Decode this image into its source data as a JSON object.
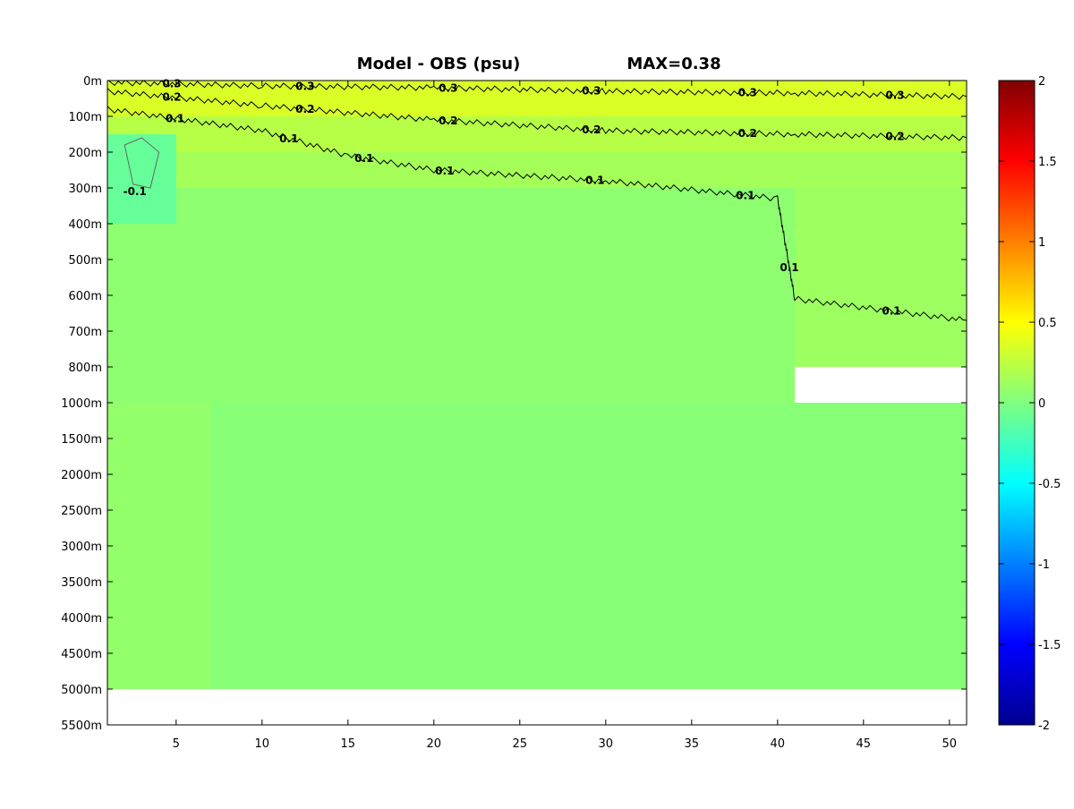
{
  "chart_data": {
    "type": "heatmap",
    "title": "Model - OBS (psu)",
    "annotation": "MAX=0.38",
    "xlabel": "",
    "ylabel": "",
    "x_ticks": [
      5,
      10,
      15,
      20,
      25,
      30,
      35,
      40,
      45,
      50
    ],
    "xlim": [
      1,
      51
    ],
    "depth_ticks": [
      "0m",
      "100m",
      "200m",
      "300m",
      "400m",
      "500m",
      "600m",
      "700m",
      "800m",
      "1000m",
      "1500m",
      "2000m",
      "2500m",
      "3000m",
      "3500m",
      "4000m",
      "4500m",
      "5000m",
      "5500m"
    ],
    "data_bottom_depth": "5000m",
    "colorbar": {
      "colormap": "jet",
      "range": [
        -2,
        2
      ],
      "ticks": [
        "2",
        "1.5",
        "1",
        "0.5",
        "0",
        "-0.5",
        "-1",
        "-1.5",
        "-2"
      ]
    },
    "regions": [
      {
        "description": "surface layer",
        "x": [
          1,
          51
        ],
        "depth": [
          "0m",
          "100m"
        ],
        "value": 0.35
      },
      {
        "description": "near-surface layer",
        "x": [
          1,
          51
        ],
        "depth": [
          "100m",
          "200m"
        ],
        "value": 0.22
      },
      {
        "description": "upper thermocline",
        "x": [
          1,
          51
        ],
        "depth": [
          "200m",
          "300m"
        ],
        "value": 0.15
      },
      {
        "description": "eastern intermediate",
        "x": [
          41,
          51
        ],
        "depth": [
          "300m",
          "800m"
        ],
        "value": 0.12
      },
      {
        "description": "interior intermediate",
        "x": [
          1,
          41
        ],
        "depth": [
          "300m",
          "1000m"
        ],
        "value": 0.06
      },
      {
        "description": "deep ocean",
        "x": [
          1,
          51
        ],
        "depth": [
          "1000m",
          "5000m"
        ],
        "value": 0.03
      },
      {
        "description": "western deep",
        "x": [
          1,
          7
        ],
        "depth": [
          "1000m",
          "5000m"
        ],
        "value": 0.08
      },
      {
        "description": "western minimum",
        "x": [
          1,
          5
        ],
        "depth": [
          "150m",
          "400m"
        ],
        "value": -0.1
      }
    ],
    "contours": [
      {
        "level": 0.3,
        "points": [
          [
            1,
            "5m"
          ],
          [
            10,
            "15m"
          ],
          [
            20,
            "20m"
          ],
          [
            30,
            "30m"
          ],
          [
            41,
            "35m"
          ],
          [
            51,
            "45m"
          ]
        ],
        "labels": [
          "0.3",
          "0.3",
          "0.3",
          "0.3",
          "0.3",
          "0.3"
        ]
      },
      {
        "level": 0.2,
        "points": [
          [
            1,
            "30m"
          ],
          [
            10,
            "70m"
          ],
          [
            20,
            "110m"
          ],
          [
            30,
            "140m"
          ],
          [
            41,
            "150m"
          ],
          [
            51,
            "160m"
          ]
        ],
        "labels": [
          "0.2",
          "0.2",
          "0.2",
          "0.2",
          "0.2",
          "0.2"
        ]
      },
      {
        "level": 0.1,
        "points": [
          [
            1,
            "80m"
          ],
          [
            10,
            "140m"
          ],
          [
            15,
            "210m"
          ],
          [
            20,
            "250m"
          ],
          [
            30,
            "280m"
          ],
          [
            40,
            "330m"
          ],
          [
            41,
            "610m"
          ],
          [
            51,
            "670m"
          ]
        ],
        "labels": [
          "0.1",
          "0.1",
          "0.1",
          "0.1",
          "0.1",
          "0.1",
          "0.1",
          "0.1"
        ]
      },
      {
        "level": -0.1,
        "closed": true,
        "points": [
          [
            2,
            "180m"
          ],
          [
            3,
            "160m"
          ],
          [
            4,
            "200m"
          ],
          [
            3.5,
            "300m"
          ],
          [
            2.5,
            "290m"
          ]
        ],
        "labels": [
          "-0.1"
        ]
      }
    ]
  }
}
